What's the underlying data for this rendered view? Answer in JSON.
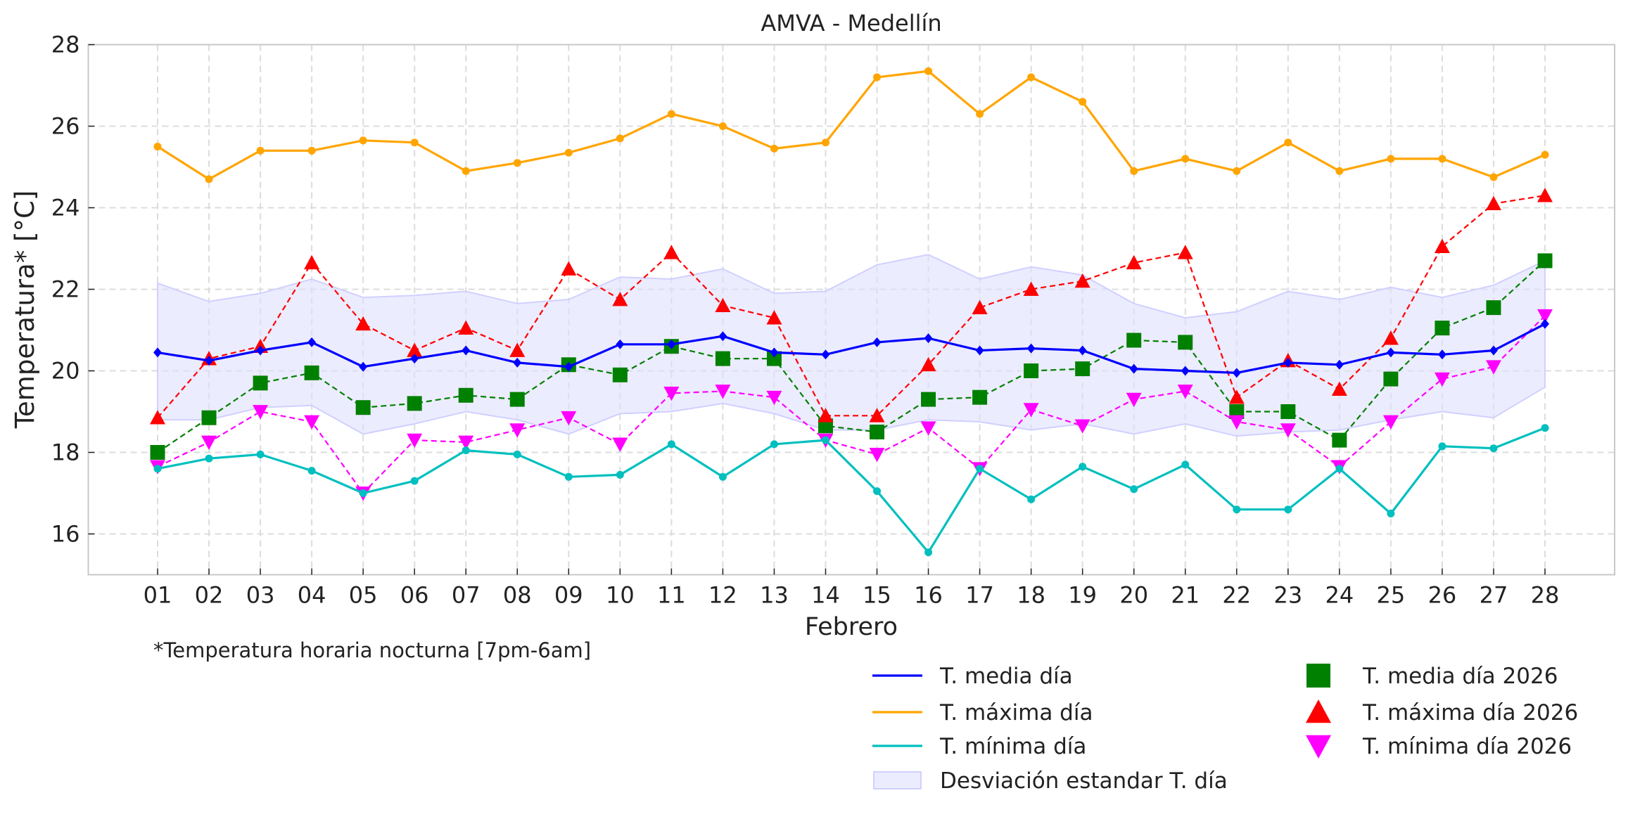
{
  "chart_data": {
    "type": "line",
    "title": "AMVA - Medellín",
    "xlabel": "Febrero",
    "ylabel": "Temperatura* [°C]",
    "note": "*Temperatura horaria nocturna [7pm-6am]",
    "ylim": [
      15,
      28
    ],
    "yticks": [
      16,
      18,
      20,
      22,
      24,
      26,
      28
    ],
    "grid": true,
    "legend_placement": "bottom-right",
    "categories": [
      "01",
      "02",
      "03",
      "04",
      "05",
      "06",
      "07",
      "08",
      "09",
      "10",
      "11",
      "12",
      "13",
      "14",
      "15",
      "16",
      "17",
      "18",
      "19",
      "20",
      "21",
      "22",
      "23",
      "24",
      "25",
      "26",
      "27",
      "28"
    ],
    "series": [
      {
        "name": "T. media día",
        "color": "#0000ff",
        "style": "solid",
        "marker": "diamond",
        "values": [
          20.45,
          20.25,
          20.5,
          20.7,
          20.1,
          20.3,
          20.5,
          20.2,
          20.1,
          20.65,
          20.65,
          20.85,
          20.45,
          20.4,
          20.7,
          20.8,
          20.5,
          20.55,
          20.5,
          20.05,
          20.0,
          19.95,
          20.2,
          20.15,
          20.45,
          20.4,
          20.5,
          21.15
        ]
      },
      {
        "name": "T. máxima día",
        "color": "#ffa500",
        "style": "solid",
        "marker": "circle",
        "values": [
          25.5,
          24.7,
          25.4,
          25.4,
          25.65,
          25.6,
          24.9,
          25.1,
          25.35,
          25.7,
          26.3,
          26.0,
          25.45,
          25.6,
          27.2,
          27.35,
          26.3,
          27.2,
          26.6,
          24.9,
          25.2,
          24.9,
          25.6,
          24.9,
          25.2,
          25.2,
          24.75,
          25.3
        ]
      },
      {
        "name": "T. mínima día",
        "color": "#00bfbf",
        "style": "solid",
        "marker": "circle",
        "values": [
          17.6,
          17.85,
          17.95,
          17.55,
          17.0,
          17.3,
          18.05,
          17.95,
          17.4,
          17.45,
          18.2,
          17.4,
          18.2,
          18.3,
          17.05,
          15.55,
          17.6,
          16.85,
          17.65,
          17.1,
          17.7,
          16.6,
          16.6,
          17.6,
          16.5,
          18.15,
          18.1,
          18.6
        ]
      },
      {
        "name": "T. media día 2026",
        "color": "#008000",
        "style": "dashed",
        "marker": "square",
        "values": [
          18.0,
          18.85,
          19.7,
          19.95,
          19.1,
          19.2,
          19.4,
          19.3,
          20.15,
          19.9,
          20.6,
          20.3,
          20.3,
          18.65,
          18.5,
          19.3,
          19.35,
          20.0,
          20.05,
          20.75,
          20.7,
          19.0,
          19.0,
          18.3,
          19.8,
          21.05,
          21.55,
          22.7
        ]
      },
      {
        "name": "T. máxima día 2026",
        "color": "#ff0000",
        "style": "dashed",
        "marker": "triangle-up",
        "values": [
          18.85,
          20.3,
          20.6,
          22.65,
          21.15,
          20.5,
          21.05,
          20.5,
          22.5,
          21.75,
          22.9,
          21.6,
          21.3,
          18.9,
          18.9,
          20.15,
          21.55,
          22.0,
          22.2,
          22.65,
          22.9,
          19.35,
          20.25,
          19.55,
          20.8,
          23.05,
          24.1,
          24.3
        ]
      },
      {
        "name": "T. mínima día 2026",
        "color": "#ff00ff",
        "style": "dashed",
        "marker": "triangle-down",
        "values": [
          17.65,
          18.25,
          19.0,
          18.75,
          17.0,
          18.3,
          18.25,
          18.55,
          18.85,
          18.2,
          19.45,
          19.5,
          19.35,
          18.3,
          17.95,
          18.6,
          17.6,
          19.05,
          18.65,
          19.3,
          19.5,
          18.75,
          18.55,
          17.65,
          18.75,
          19.8,
          20.1,
          21.35
        ]
      }
    ],
    "band": {
      "name": "Desviación estandar T. día",
      "color": "#e0e0ff",
      "upper": [
        22.15,
        21.7,
        21.9,
        22.25,
        21.8,
        21.85,
        21.95,
        21.65,
        21.75,
        22.3,
        22.25,
        22.5,
        21.9,
        21.95,
        22.6,
        22.85,
        22.25,
        22.55,
        22.35,
        21.65,
        21.3,
        21.45,
        21.95,
        21.75,
        22.05,
        21.8,
        22.1,
        22.7
      ],
      "lower": [
        18.8,
        18.8,
        19.1,
        19.15,
        18.45,
        18.7,
        19.0,
        18.8,
        18.45,
        18.95,
        19.0,
        19.2,
        18.95,
        18.55,
        18.55,
        18.8,
        18.75,
        18.55,
        18.7,
        18.45,
        18.7,
        18.4,
        18.5,
        18.55,
        18.8,
        19.0,
        18.85,
        19.6
      ]
    }
  }
}
